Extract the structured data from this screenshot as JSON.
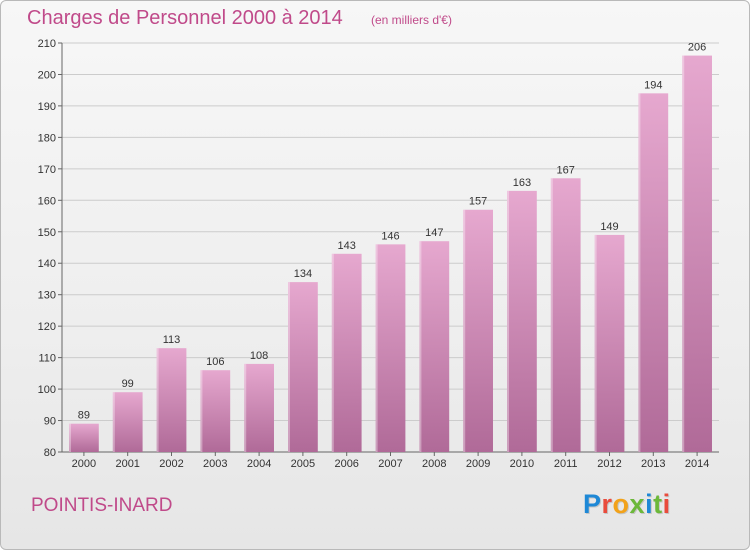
{
  "header": {
    "title": "Charges de Personnel 2000 à 2014",
    "subtitle": "(en milliers d'€)"
  },
  "footer": {
    "commune": "POINTIS-INARD",
    "logo_text": "Proxiti",
    "logo_colors": [
      "#1e88d6",
      "#e94b3c",
      "#f2a21a",
      "#6cb83a",
      "#1e88d6",
      "#6cb83a",
      "#e94b3c"
    ]
  },
  "colors": {
    "accent": "#c04a8a",
    "bar_top": "#e6a8cf",
    "bar_bottom": "#b06a98",
    "grid": "#cccccc"
  },
  "chart_data": {
    "type": "bar",
    "title": "Charges de Personnel 2000 à 2014",
    "subtitle": "(en milliers d'€)",
    "categories": [
      "2000",
      "2001",
      "2002",
      "2003",
      "2004",
      "2005",
      "2006",
      "2007",
      "2008",
      "2009",
      "2010",
      "2011",
      "2012",
      "2013",
      "2014"
    ],
    "values": [
      89,
      99,
      113,
      106,
      108,
      134,
      143,
      146,
      147,
      157,
      163,
      167,
      149,
      194,
      206
    ],
    "ylim": [
      80,
      210
    ],
    "yticks": [
      80,
      90,
      100,
      110,
      120,
      130,
      140,
      150,
      160,
      170,
      180,
      190,
      200,
      210
    ],
    "grid": true,
    "xlabel": "",
    "ylabel": ""
  }
}
